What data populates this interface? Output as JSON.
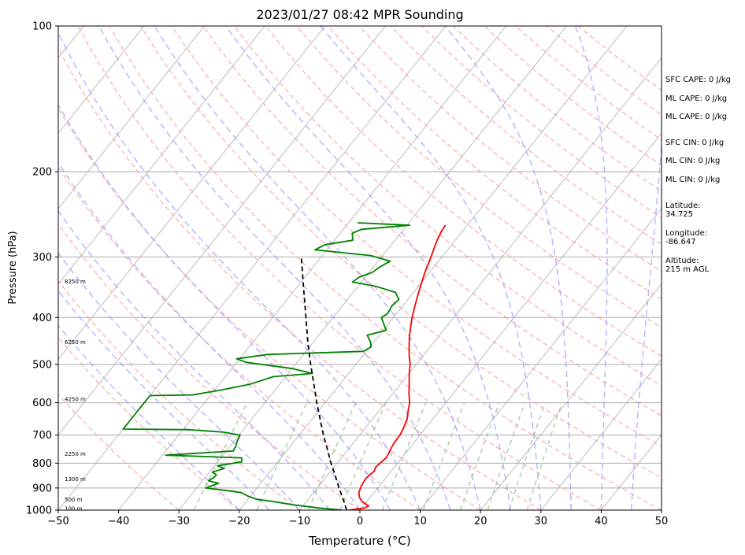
{
  "chart_data": {
    "type": "line",
    "subtype": "skew-T log-p sounding",
    "title": "2023/01/27 08:42 MPR Sounding",
    "xlabel": "Temperature (°C)",
    "ylabel": "Pressure (hPa)",
    "xlim": [
      -50,
      50
    ],
    "ylim": [
      1000,
      100
    ],
    "y_scale": "log",
    "x_ticks": [
      "−50",
      "−40",
      "−30",
      "−20",
      "−10",
      "0",
      "10",
      "20",
      "30",
      "40",
      "50"
    ],
    "y_ticks": [
      "100",
      "200",
      "300",
      "400",
      "500",
      "600",
      "700",
      "800",
      "900",
      "1000"
    ],
    "grid": true,
    "colors": {
      "temperature": "#ff0000",
      "dewpoint": "#008000",
      "parcel": "#000000",
      "dry_adiabats": "#ff9999",
      "moist_adiabats": "#9999ff",
      "mixing_ratio": "#99cc99",
      "isotherms": "#aaaaaa",
      "isobars": "#aaaaaa"
    },
    "series": [
      {
        "points": [
          [
            1000,
            -1.8
          ],
          [
            990,
            0.5
          ],
          [
            980,
            0.9
          ],
          [
            960,
            -0.8
          ],
          [
            940,
            -1.8
          ],
          [
            920,
            -2.5
          ],
          [
            890,
            -3
          ],
          [
            860,
            -3.2
          ],
          [
            830,
            -2.8
          ],
          [
            815,
            -3.1
          ],
          [
            800,
            -2.9
          ],
          [
            780,
            -2.6
          ],
          [
            760,
            -2.8
          ],
          [
            740,
            -3.1
          ],
          [
            720,
            -3.3
          ],
          [
            700,
            -3.3
          ],
          [
            680,
            -3.6
          ],
          [
            650,
            -4.2
          ],
          [
            620,
            -5.3
          ],
          [
            600,
            -6
          ],
          [
            575,
            -7.3
          ],
          [
            550,
            -8.5
          ],
          [
            525,
            -9.8
          ],
          [
            500,
            -11
          ],
          [
            480,
            -12.3
          ],
          [
            460,
            -13.5
          ],
          [
            440,
            -14.7
          ],
          [
            420,
            -15.8
          ],
          [
            400,
            -16.9
          ],
          [
            380,
            -17.9
          ],
          [
            360,
            -18.9
          ],
          [
            340,
            -19.9
          ],
          [
            320,
            -20.9
          ],
          [
            300,
            -21.8
          ],
          [
            285,
            -22.6
          ],
          [
            275,
            -23.1
          ],
          [
            265,
            -23.5
          ],
          [
            258,
            -23.6
          ]
        ]
      },
      {
        "points": [
          [
            1000,
            -2.9
          ],
          [
            990,
            -7
          ],
          [
            975,
            -11.8
          ],
          [
            960,
            -15.5
          ],
          [
            950,
            -18.5
          ],
          [
            935,
            -20.5
          ],
          [
            920,
            -22
          ],
          [
            910,
            -25
          ],
          [
            900,
            -28.5
          ],
          [
            880,
            -27
          ],
          [
            870,
            -29
          ],
          [
            855,
            -28.5
          ],
          [
            845,
            -28.5
          ],
          [
            835,
            -29.5
          ],
          [
            820,
            -28
          ],
          [
            810,
            -29.5
          ],
          [
            795,
            -26
          ],
          [
            780,
            -26.5
          ],
          [
            770,
            -39.5
          ],
          [
            755,
            -28.8
          ],
          [
            745,
            -29
          ],
          [
            740,
            -29
          ],
          [
            720,
            -29.5
          ],
          [
            700,
            -29.8
          ],
          [
            690,
            -33
          ],
          [
            682,
            -39
          ],
          [
            680,
            -50
          ],
          [
            580,
            -50
          ],
          [
            578,
            -43
          ],
          [
            565,
            -39
          ],
          [
            550,
            -35
          ],
          [
            530,
            -32
          ],
          [
            522,
            -26
          ],
          [
            510,
            -30
          ],
          [
            495,
            -38.5
          ],
          [
            487,
            -40.5
          ],
          [
            477,
            -36
          ],
          [
            470,
            -20.5
          ],
          [
            460,
            -19.8
          ],
          [
            450,
            -20.5
          ],
          [
            435,
            -22
          ],
          [
            425,
            -19.5
          ],
          [
            410,
            -21
          ],
          [
            400,
            -22
          ],
          [
            393,
            -21.5
          ],
          [
            378,
            -21.8
          ],
          [
            367,
            -21.5
          ],
          [
            355,
            -23
          ],
          [
            345,
            -27
          ],
          [
            338,
            -31.5
          ],
          [
            330,
            -31
          ],
          [
            323,
            -29.5
          ],
          [
            315,
            -29
          ],
          [
            306,
            -28
          ],
          [
            298,
            -32
          ],
          [
            290,
            -42
          ],
          [
            283,
            -41
          ],
          [
            277,
            -37
          ],
          [
            268,
            -38
          ],
          [
            263,
            -37
          ],
          [
            258,
            -29.5
          ],
          [
            255,
            -38.5
          ]
        ]
      },
      {
        "points": [
          [
            1000,
            -2.2
          ],
          [
            950,
            -4.2
          ],
          [
            900,
            -6.4
          ],
          [
            850,
            -8.6
          ],
          [
            800,
            -11
          ],
          [
            750,
            -13.4
          ],
          [
            700,
            -16
          ],
          [
            650,
            -18.6
          ],
          [
            600,
            -21.4
          ],
          [
            550,
            -24.3
          ],
          [
            500,
            -27.5
          ],
          [
            450,
            -30.9
          ],
          [
            400,
            -34.5
          ],
          [
            350,
            -38.6
          ],
          [
            300,
            -43.3
          ]
        ]
      }
    ],
    "height_labels": [
      {
        "text": "100 m",
        "p": 992
      },
      {
        "text": "500 m",
        "p": 950
      },
      {
        "text": "1300 m",
        "p": 863
      },
      {
        "text": "2250 m",
        "p": 765
      },
      {
        "text": "4250 m",
        "p": 590
      },
      {
        "text": "6250 m",
        "p": 450
      },
      {
        "text": "8250 m",
        "p": 337
      }
    ],
    "annotations": [
      {
        "text": "SFC CAPE: 0 J/kg"
      },
      {
        "text": "ML CAPE: 0 J/kg"
      },
      {
        "text": "ML CAPE: 0 J/kg"
      },
      {
        "text": "SFC CIN: 0 J/kg"
      },
      {
        "text": "ML CIN: 0 J/kg"
      },
      {
        "text": "ML CIN: 0 J/kg"
      },
      {
        "text": "Latitude:",
        "value": "34.725"
      },
      {
        "text": "Longitude:",
        "value": "-86.647"
      },
      {
        "text": "Altitude:",
        "value": "215 m AGL"
      }
    ]
  }
}
